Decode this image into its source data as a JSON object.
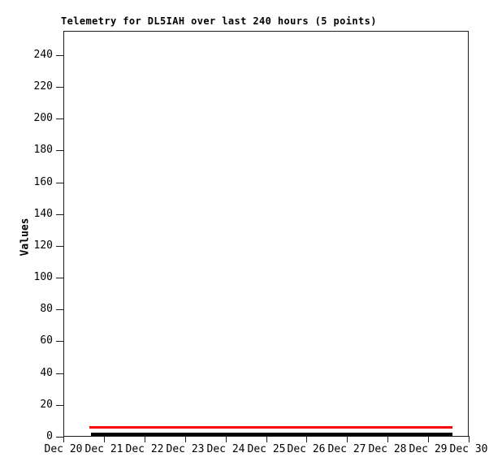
{
  "chart_data": {
    "type": "line",
    "title": "Telemetry for DL5IAH over last 240 hours (5 points)",
    "ylabel": "Values",
    "xlabel": "",
    "points": 5,
    "grid": false,
    "legend": "none",
    "ylim": [
      0,
      255.3
    ],
    "yticks": [
      0,
      20,
      40,
      60,
      80,
      100,
      120,
      140,
      160,
      180,
      200,
      220,
      240
    ],
    "x_axis": {
      "tick_labels": [
        "Dec 20",
        "Dec 21",
        "Dec 22",
        "Dec 23",
        "Dec 24",
        "Dec 25",
        "Dec 26",
        "Dec 27",
        "Dec 28",
        "Dec 29",
        "Dec 30"
      ],
      "range_days": [
        0,
        10
      ]
    },
    "series": [
      {
        "name": "telemetry-red",
        "color": "#ff0000",
        "shape": "flat-line",
        "value": 6,
        "start_day": 0.64,
        "end_day": 9.6,
        "thickness_px": 3
      },
      {
        "name": "telemetry-black",
        "color": "#000000",
        "shape": "flat-line",
        "value": 1.5,
        "start_day": 0.68,
        "end_day": 9.6,
        "thickness_px": 4
      }
    ],
    "colors": {
      "axis": "#1c1c1c",
      "text": "#000000",
      "background": "#ffffff",
      "line_red": "#ff0000",
      "line_black": "#000000"
    }
  }
}
